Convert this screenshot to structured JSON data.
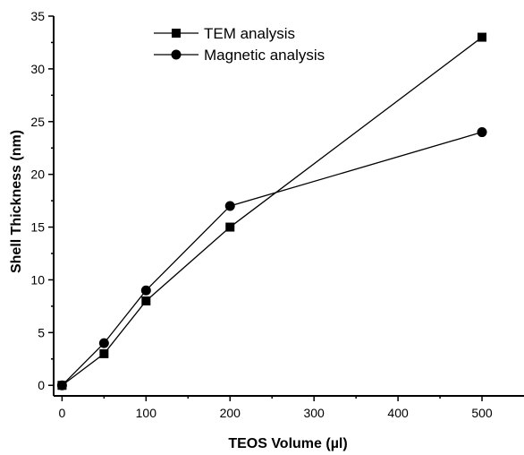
{
  "chart_data": {
    "type": "line",
    "xlabel": "TEOS Volume (µl)",
    "ylabel": "Shell Thickness (nm)",
    "xlim": [
      -10,
      550
    ],
    "ylim": [
      -1,
      35
    ],
    "xticks": [
      0,
      100,
      200,
      300,
      400,
      500
    ],
    "yticks": [
      0,
      5,
      10,
      15,
      20,
      25,
      30,
      35
    ],
    "legend_position": "top-center",
    "grid": false,
    "series": [
      {
        "name": "TEM analysis",
        "marker": "square",
        "x": [
          0,
          50,
          100,
          200,
          500
        ],
        "y": [
          0,
          3,
          8,
          15,
          33
        ]
      },
      {
        "name": "Magnetic analysis",
        "marker": "circle",
        "x": [
          0,
          50,
          100,
          200,
          500
        ],
        "y": [
          0,
          4,
          9,
          17,
          24
        ]
      }
    ]
  }
}
